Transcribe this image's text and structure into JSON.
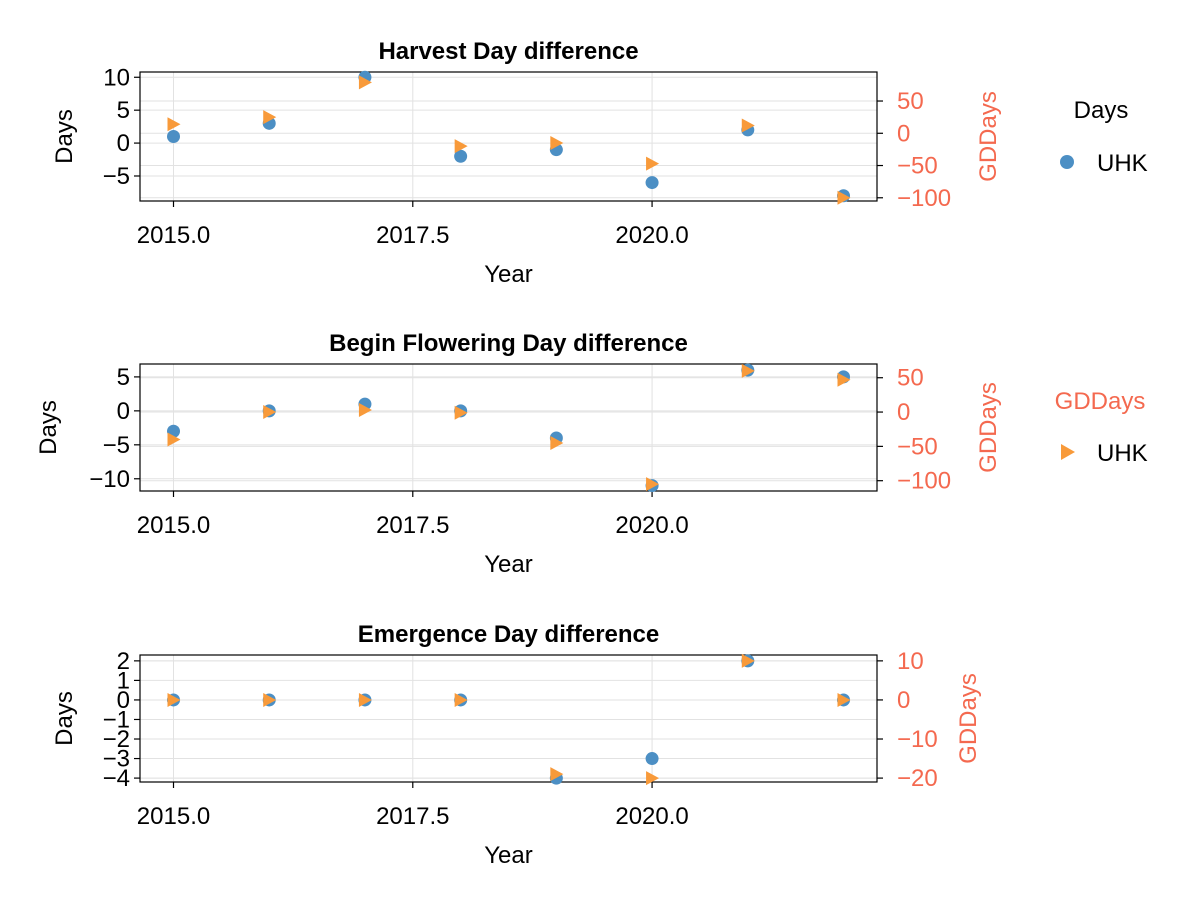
{
  "colors": {
    "days": "#4c8fc4",
    "gddays": "#f89a3a",
    "right_axis": "#f4694f",
    "grid": "#e2e2e2",
    "frame": "#000000"
  },
  "legend": {
    "days_title": "Days",
    "days_entry": "UHK",
    "gddays_title": "GDDays",
    "gddays_entry": "UHK"
  },
  "chart_data": [
    {
      "type": "scatter",
      "title": "Harvest Day difference",
      "xlabel": "Year",
      "ylabel": "Days",
      "ylabel_right": "GDDays",
      "xlim": [
        2014.65,
        2022.35
      ],
      "ylim": [
        -8.8,
        10.8
      ],
      "ylim_right": [
        -105,
        95
      ],
      "xticks": [
        2015.0,
        2017.5,
        2020.0
      ],
      "xtick_labels": [
        "2015.0",
        "2017.5",
        "2020.0"
      ],
      "yticks": [
        -5,
        0,
        5,
        10
      ],
      "ytick_labels": [
        "−5",
        "0",
        "5",
        "10"
      ],
      "yticks_right": [
        -100,
        -50,
        0,
        50
      ],
      "ytick_labels_right": [
        "−100",
        "−50",
        "0",
        "50"
      ],
      "grid": true,
      "x": [
        2015,
        2016,
        2017,
        2018,
        2019,
        2020,
        2021,
        2022
      ],
      "series": [
        {
          "axis": "left",
          "marker": "circle",
          "values": [
            1,
            3,
            10,
            -2,
            -1,
            -6,
            2,
            -8
          ]
        },
        {
          "axis": "right",
          "marker": "triangle-right",
          "values": [
            14,
            25,
            79,
            -20,
            -15,
            -47,
            12,
            -100
          ]
        }
      ]
    },
    {
      "type": "scatter",
      "title": "Begin Flowering Day difference",
      "xlabel": "Year",
      "ylabel": "Days",
      "ylabel_right": "GDDays",
      "xlim": [
        2014.65,
        2022.35
      ],
      "ylim": [
        -11.8,
        6.9
      ],
      "ylim_right": [
        -115,
        70
      ],
      "xticks": [
        2015.0,
        2017.5,
        2020.0
      ],
      "xtick_labels": [
        "2015.0",
        "2017.5",
        "2020.0"
      ],
      "yticks": [
        -10,
        -5,
        0,
        5
      ],
      "ytick_labels": [
        "−10",
        "−5",
        "0",
        "5"
      ],
      "yticks_right": [
        -100,
        -50,
        0,
        50
      ],
      "ytick_labels_right": [
        "−100",
        "−50",
        "0",
        "50"
      ],
      "grid": true,
      "x": [
        2015,
        2016,
        2017,
        2018,
        2019,
        2020,
        2021,
        2022
      ],
      "series": [
        {
          "axis": "left",
          "marker": "circle",
          "values": [
            -3,
            0,
            1,
            0,
            -4,
            -11,
            6,
            5
          ]
        },
        {
          "axis": "right",
          "marker": "triangle-right",
          "values": [
            -40,
            0,
            3,
            -1,
            -45,
            -105,
            60,
            47
          ]
        }
      ]
    },
    {
      "type": "scatter",
      "title": "Emergence Day difference",
      "xlabel": "Year",
      "ylabel": "Days",
      "ylabel_right": "GDDays",
      "xlim": [
        2014.65,
        2022.35
      ],
      "ylim": [
        -4.2,
        2.3
      ],
      "ylim_right": [
        -21,
        11.5
      ],
      "xticks": [
        2015.0,
        2017.5,
        2020.0
      ],
      "xtick_labels": [
        "2015.0",
        "2017.5",
        "2020.0"
      ],
      "yticks": [
        -4,
        -3,
        -2,
        -1,
        0,
        1,
        2
      ],
      "ytick_labels": [
        "−4",
        "−3",
        "−2",
        "−1",
        "0",
        "1",
        "2"
      ],
      "yticks_right": [
        -20,
        -10,
        0,
        10
      ],
      "ytick_labels_right": [
        "−20",
        "−10",
        "0",
        "10"
      ],
      "grid": true,
      "x": [
        2015,
        2016,
        2017,
        2018,
        2019,
        2020,
        2021,
        2022
      ],
      "series": [
        {
          "axis": "left",
          "marker": "circle",
          "values": [
            0,
            0,
            0,
            0,
            -4,
            -3,
            2,
            0
          ]
        },
        {
          "axis": "right",
          "marker": "triangle-right",
          "values": [
            0,
            0,
            0,
            0,
            -19,
            -20,
            10,
            0
          ]
        }
      ]
    }
  ]
}
